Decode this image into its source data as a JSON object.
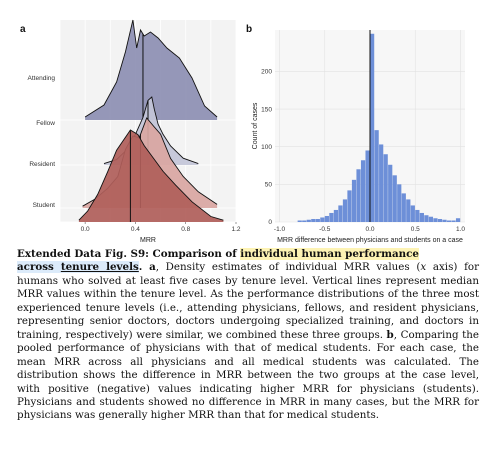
{
  "figure": {
    "panel_a_label": "a",
    "panel_b_label": "b"
  },
  "chart_data": [
    {
      "type": "area",
      "panel": "a",
      "subtype": "ridgeline-density",
      "xlabel": "MRR",
      "ylabel": "",
      "xlim": [
        -0.2,
        1.2
      ],
      "xticks": [
        "0.0",
        "0.4",
        "0.8",
        "1.2"
      ],
      "xtick_values": [
        0.0,
        0.4,
        0.8,
        1.2
      ],
      "grid": true,
      "series": [
        {
          "name": "Attending",
          "color": "#8d8fb3",
          "median": 0.46,
          "x": [
            0.0,
            0.15,
            0.25,
            0.32,
            0.38,
            0.41,
            0.44,
            0.47,
            0.52,
            0.58,
            0.65,
            0.75,
            0.85,
            0.95,
            1.05
          ],
          "density": [
            0.03,
            0.15,
            0.38,
            0.68,
            1.0,
            0.72,
            0.9,
            0.84,
            0.88,
            0.82,
            0.72,
            0.62,
            0.42,
            0.14,
            0.03
          ]
        },
        {
          "name": "Fellow",
          "color": "#c3c5d8",
          "median": 0.5,
          "x": [
            0.15,
            0.25,
            0.33,
            0.4,
            0.46,
            0.5,
            0.53,
            0.55,
            0.58,
            0.62,
            0.68,
            0.78,
            0.9
          ],
          "density": [
            0.02,
            0.08,
            0.22,
            0.45,
            0.7,
            0.95,
            1.0,
            0.82,
            0.6,
            0.45,
            0.28,
            0.1,
            0.02
          ]
        },
        {
          "name": "Resident",
          "color": "#d9a6a2",
          "median": 0.44,
          "x": [
            -0.02,
            0.08,
            0.18,
            0.26,
            0.32,
            0.38,
            0.43,
            0.49,
            0.55,
            0.6,
            0.68,
            0.78,
            0.9,
            1.05
          ],
          "density": [
            0.02,
            0.1,
            0.22,
            0.35,
            0.65,
            0.8,
            0.78,
            1.0,
            0.9,
            0.82,
            0.55,
            0.35,
            0.18,
            0.04
          ]
        },
        {
          "name": "Student",
          "color": "#b05e5a",
          "median": 0.36,
          "x": [
            -0.05,
            0.02,
            0.1,
            0.18,
            0.25,
            0.3,
            0.36,
            0.42,
            0.47,
            0.54,
            0.62,
            0.72,
            0.85,
            1.0,
            1.1
          ],
          "density": [
            0.02,
            0.12,
            0.3,
            0.55,
            0.78,
            0.88,
            1.0,
            0.95,
            0.83,
            0.7,
            0.55,
            0.4,
            0.22,
            0.06,
            0.02
          ]
        }
      ]
    },
    {
      "type": "bar",
      "panel": "b",
      "subtype": "histogram",
      "xlabel": "MRR difference between physicians and students on a case",
      "ylabel": "Count of cases",
      "xlim": [
        -1.05,
        1.05
      ],
      "ylim": [
        0,
        255
      ],
      "xticks": [
        "-1.0",
        "-0.5",
        "0.0",
        "0.5",
        "1.0"
      ],
      "xtick_values": [
        -1.0,
        -0.5,
        0.0,
        0.5,
        1.0
      ],
      "yticks": [
        "0",
        "50",
        "100",
        "150",
        "200"
      ],
      "ytick_values": [
        0,
        50,
        100,
        150,
        200
      ],
      "grid": true,
      "bin_width": 0.05,
      "bins_start": [
        -0.8,
        -0.75,
        -0.7,
        -0.65,
        -0.6,
        -0.55,
        -0.5,
        -0.45,
        -0.4,
        -0.35,
        -0.3,
        -0.25,
        -0.2,
        -0.15,
        -0.1,
        -0.05,
        0.0,
        0.05,
        0.1,
        0.15,
        0.2,
        0.25,
        0.3,
        0.35,
        0.4,
        0.45,
        0.5,
        0.55,
        0.6,
        0.65,
        0.7,
        0.75,
        0.8,
        0.85,
        0.9,
        0.95
      ],
      "counts": [
        2,
        2,
        3,
        4,
        4,
        6,
        8,
        12,
        16,
        22,
        30,
        42,
        56,
        70,
        82,
        95,
        250,
        122,
        103,
        90,
        76,
        62,
        50,
        38,
        30,
        22,
        16,
        12,
        9,
        7,
        5,
        4,
        3,
        2,
        2,
        5
      ],
      "color": "#6d8fd8",
      "vline": 0.0
    }
  ],
  "caption": {
    "title_prefix": "Extended Data Fig. S9",
    "title_colon": ": Comparison of ",
    "title_highlight_1": "individual human performance",
    "title_highlight_2a": "across ",
    "title_highlight_2b": "tenure levels",
    "title_end": ".",
    "part_a_label": "a",
    "part_a_text_1": ", Density estimates of individual MRR values (",
    "part_a_x": "x",
    "part_a_text_2": " axis) for humans who solved at least five cases by tenure level. Vertical lines represent median MRR values within the tenure level. As the performance distributions of the three most experienced tenure levels (i.e., attending physicians, fellows, and resident physicians, representing senior doctors, doctors undergoing specialized training, and doctors in training, respectively) were similar, we combined these three groups. ",
    "part_b_label": "b",
    "part_b_text": ", Comparing the pooled performance of physicians with that of medical students. For each case, the mean MRR across all physicians and all medical students was calculated. The distribution shows the difference in MRR between the two groups at the case level, with positive (negative) values indicating higher MRR for physicians (students). Physicians and students showed no difference in MRR in many cases, but the MRR for physicians was generally higher MRR than that for medical students."
  }
}
